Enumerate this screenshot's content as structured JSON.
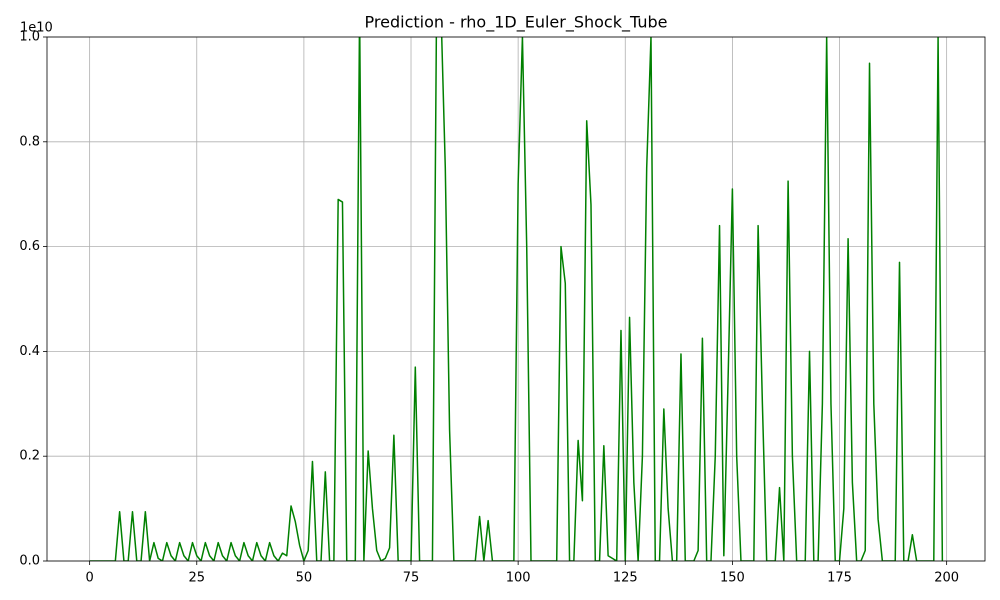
{
  "chart_data": {
    "type": "line",
    "title": "Prediction - rho_1D_Euler_Shock_Tube",
    "y_offset_label": "1e10",
    "x": [
      0,
      1,
      2,
      3,
      4,
      5,
      6,
      7,
      8,
      9,
      10,
      11,
      12,
      13,
      14,
      15,
      16,
      17,
      18,
      19,
      20,
      21,
      22,
      23,
      24,
      25,
      26,
      27,
      28,
      29,
      30,
      31,
      32,
      33,
      34,
      35,
      36,
      37,
      38,
      39,
      40,
      41,
      42,
      43,
      44,
      45,
      46,
      47,
      48,
      49,
      50,
      51,
      52,
      53,
      54,
      55,
      56,
      57,
      58,
      59,
      60,
      61,
      62,
      63,
      64,
      65,
      66,
      67,
      68,
      69,
      70,
      71,
      72,
      73,
      74,
      75,
      76,
      77,
      78,
      79,
      80,
      81,
      82,
      83,
      84,
      85,
      86,
      87,
      88,
      89,
      90,
      91,
      92,
      93,
      94,
      95,
      96,
      97,
      98,
      99,
      100,
      101,
      102,
      103,
      104,
      105,
      106,
      107,
      108,
      109,
      110,
      111,
      112,
      113,
      114,
      115,
      116,
      117,
      118,
      119,
      120,
      121,
      122,
      123,
      124,
      125,
      126,
      127,
      128,
      129,
      130,
      131,
      132,
      133,
      134,
      135,
      136,
      137,
      138,
      139,
      140,
      141,
      142,
      143,
      144,
      145,
      146,
      147,
      148,
      149,
      150,
      151,
      152,
      153,
      154,
      155,
      156,
      157,
      158,
      159,
      160,
      161,
      162,
      163,
      164,
      165,
      166,
      167,
      168,
      169,
      170,
      171,
      172,
      173,
      174,
      175,
      176,
      177,
      178,
      179,
      180,
      181,
      182,
      183,
      184,
      185,
      186,
      187,
      188,
      189,
      190,
      191,
      192,
      193,
      194,
      195,
      196,
      197,
      198,
      199
    ],
    "series": [
      {
        "color": "#008000",
        "values": [
          0,
          0,
          0,
          0,
          0,
          0,
          0,
          0.094,
          0,
          0,
          0.094,
          0,
          0,
          0.094,
          0,
          0.035,
          0.005,
          0,
          0.035,
          0.01,
          0,
          0.035,
          0.01,
          0,
          0.035,
          0.01,
          0,
          0.035,
          0.01,
          0,
          0.035,
          0.01,
          0,
          0.035,
          0.01,
          0,
          0.035,
          0.01,
          0,
          0.035,
          0.01,
          0,
          0.035,
          0.01,
          0,
          0.015,
          0.01,
          0.105,
          0.075,
          0.03,
          0,
          0.02,
          0.19,
          0,
          0,
          0.17,
          0,
          0,
          0.69,
          0.685,
          0,
          0,
          0,
          1.05,
          0,
          0.21,
          0.1,
          0.02,
          0,
          0.005,
          0.025,
          0.24,
          0,
          0,
          0,
          0,
          0.37,
          0,
          0,
          0,
          0,
          1.1,
          1.05,
          0.75,
          0.25,
          0,
          0,
          0,
          0,
          0,
          0,
          0.085,
          0,
          0.077,
          0,
          0,
          0,
          0,
          0,
          0,
          0.72,
          1.0,
          0.6,
          0,
          0,
          0,
          0,
          0,
          0,
          0,
          0.6,
          0.53,
          0,
          0,
          0.23,
          0.115,
          0.84,
          0.68,
          0,
          0,
          0.22,
          0.01,
          0.005,
          0,
          0.44,
          0,
          0.465,
          0.15,
          0,
          0.2,
          0.75,
          1.0,
          0,
          0,
          0.29,
          0.1,
          0,
          0,
          0.395,
          0,
          0,
          0,
          0.02,
          0.425,
          0,
          0,
          0.2,
          0.64,
          0.01,
          0.35,
          0.71,
          0.2,
          0,
          0,
          0,
          0,
          0.64,
          0.3,
          0,
          0,
          0,
          0.14,
          0,
          0.725,
          0.2,
          0,
          0,
          0,
          0.4,
          0,
          0,
          0.3,
          1.0,
          0.3,
          0,
          0,
          0.1,
          0.615,
          0.15,
          0,
          0,
          0.02,
          0.95,
          0.3,
          0.08,
          0,
          0,
          0,
          0,
          0.57,
          0,
          0,
          0.05,
          0,
          0,
          0,
          0,
          0,
          1.0,
          0
        ]
      }
    ],
    "xlim": [
      -9.95,
      208.95
    ],
    "ylim": [
      0,
      1
    ],
    "xticks": [
      0,
      25,
      50,
      75,
      100,
      125,
      150,
      175,
      200
    ],
    "yticks": [
      {
        "value": 0,
        "label": "0.0"
      },
      0.2,
      0.4,
      0.6,
      0.8,
      {
        "value": 1,
        "label": "1.0"
      }
    ],
    "grid": true
  }
}
